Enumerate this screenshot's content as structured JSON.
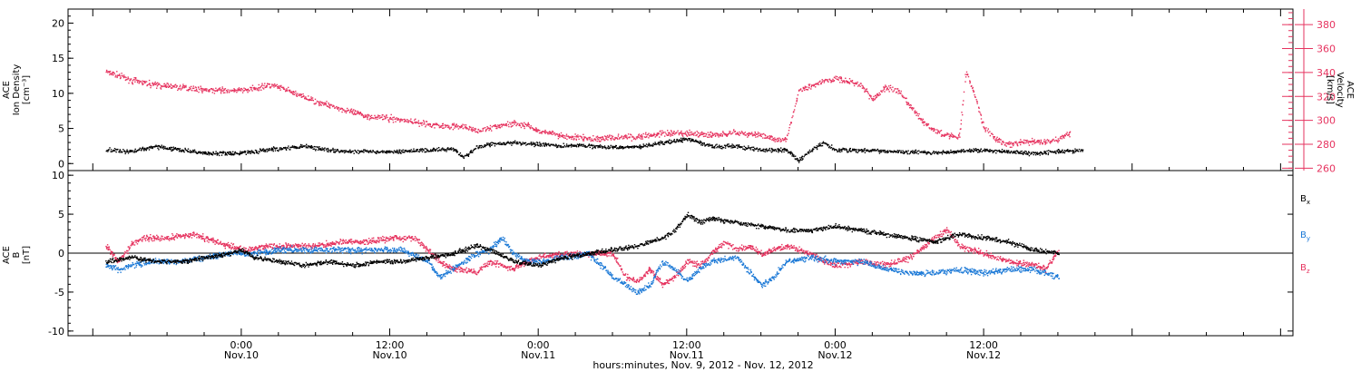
{
  "colors": {
    "black": "#000000",
    "red": "#e6335f",
    "blue": "#1a78d6"
  },
  "chart_data": [
    {
      "type": "scatter",
      "panel": "top",
      "ylabel_lines": [
        "ACE",
        "Ion Density",
        "[cm⁻³]"
      ],
      "ylim": [
        -1,
        22
      ],
      "yticks": [
        "0",
        "5",
        "10",
        "15",
        "20"
      ],
      "y2label_lines": [
        "ACE",
        "Velocity",
        "[km/s]"
      ],
      "y2lim": [
        258,
        393
      ],
      "y2ticks": [
        "260",
        "280",
        "300",
        "320",
        "340",
        "360",
        "380"
      ],
      "series": [
        {
          "name": "Ion Density",
          "color": "black",
          "axis": "left",
          "points": [
            [
              -11,
              2.0
            ],
            [
              -9,
              1.8
            ],
            [
              -7,
              2.5
            ],
            [
              -5,
              2.0
            ],
            [
              -3,
              1.6
            ],
            [
              -1,
              1.5
            ],
            [
              1,
              1.8
            ],
            [
              3,
              2.2
            ],
            [
              5,
              2.6
            ],
            [
              7,
              2.0
            ],
            [
              9,
              1.8
            ],
            [
              11,
              1.7
            ],
            [
              13,
              1.8
            ],
            [
              15,
              2.0
            ],
            [
              17,
              2.2
            ],
            [
              18,
              1.0
            ],
            [
              19,
              2.4
            ],
            [
              20,
              2.8
            ],
            [
              22,
              3.0
            ],
            [
              24,
              2.8
            ],
            [
              26,
              2.6
            ],
            [
              28,
              2.6
            ],
            [
              30,
              2.4
            ],
            [
              32,
              2.4
            ],
            [
              34,
              3.0
            ],
            [
              36,
              3.6
            ],
            [
              38,
              2.5
            ],
            [
              40,
              2.5
            ],
            [
              42,
              2.0
            ],
            [
              44,
              2.0
            ],
            [
              45,
              0.5
            ],
            [
              46,
              2.0
            ],
            [
              47,
              3.0
            ],
            [
              48,
              2.0
            ],
            [
              50,
              2.0
            ],
            [
              52,
              1.8
            ],
            [
              54,
              1.8
            ],
            [
              56,
              1.6
            ],
            [
              58,
              1.8
            ],
            [
              60,
              2.0
            ],
            [
              62,
              1.8
            ],
            [
              64,
              1.5
            ],
            [
              66,
              1.8
            ],
            [
              68,
              2.0
            ]
          ]
        },
        {
          "name": "Velocity",
          "color": "red",
          "axis": "right",
          "points": [
            [
              -11,
              341
            ],
            [
              -10,
              338
            ],
            [
              -9,
              334
            ],
            [
              -7,
              330
            ],
            [
              -5,
              328
            ],
            [
              -3,
              326
            ],
            [
              -1,
              325
            ],
            [
              1,
              327
            ],
            [
              2,
              330
            ],
            [
              3,
              328
            ],
            [
              4,
              324
            ],
            [
              6,
              316
            ],
            [
              8,
              310
            ],
            [
              10,
              304
            ],
            [
              12,
              302
            ],
            [
              14,
              299
            ],
            [
              16,
              296
            ],
            [
              18,
              295
            ],
            [
              19,
              291
            ],
            [
              20,
              294
            ],
            [
              21,
              296
            ],
            [
              22,
              298
            ],
            [
              23,
              296
            ],
            [
              24,
              292
            ],
            [
              26,
              287
            ],
            [
              28,
              285
            ],
            [
              30,
              286
            ],
            [
              32,
              287
            ],
            [
              34,
              289
            ],
            [
              36,
              290
            ],
            [
              38,
              288
            ],
            [
              40,
              290
            ],
            [
              42,
              288
            ],
            [
              43,
              285
            ],
            [
              44,
              284
            ],
            [
              45,
              325
            ],
            [
              46,
              330
            ],
            [
              47,
              333
            ],
            [
              48,
              335
            ],
            [
              49,
              333
            ],
            [
              50,
              330
            ],
            [
              51,
              318
            ],
            [
              52,
              328
            ],
            [
              53,
              325
            ],
            [
              54,
              312
            ],
            [
              55,
              300
            ],
            [
              56,
              291
            ],
            [
              57,
              288
            ],
            [
              58,
              287
            ],
            [
              58.5,
              340
            ],
            [
              59,
              329
            ],
            [
              60,
              294
            ],
            [
              61,
              284
            ],
            [
              62,
              280
            ],
            [
              63,
              282
            ],
            [
              64,
              283
            ],
            [
              65,
              282
            ],
            [
              66,
              285
            ],
            [
              67,
              290
            ]
          ]
        }
      ]
    },
    {
      "type": "scatter",
      "panel": "bottom",
      "ylabel_lines": [
        "ACE",
        "B",
        "[nT]"
      ],
      "ylim": [
        -10.6,
        10.6
      ],
      "yticks": [
        "-10",
        "-5",
        "0",
        "5",
        "10"
      ],
      "xlim": [
        -14,
        85
      ],
      "xticks": [
        {
          "x": 0,
          "label": "0:00",
          "date": "Nov.10"
        },
        {
          "x": 12,
          "label": "12:00",
          "date": "Nov.10"
        },
        {
          "x": 24,
          "label": "0:00",
          "date": "Nov.11"
        },
        {
          "x": 36,
          "label": "12:00",
          "date": "Nov.11"
        },
        {
          "x": 48,
          "label": "0:00",
          "date": "Nov.12"
        },
        {
          "x": 60,
          "label": "12:00",
          "date": "Nov.12"
        }
      ],
      "xlabel": "hours:minutes, Nov. 9, 2012 - Nov. 12, 2012",
      "legend": [
        {
          "text": "B",
          "sub": "x",
          "color": "black"
        },
        {
          "text": "B",
          "sub": "y",
          "color": "blue"
        },
        {
          "text": "B",
          "sub": "z",
          "color": "red"
        }
      ],
      "series": [
        {
          "name": "Bx",
          "color": "black",
          "points": [
            [
              -11,
              -1
            ],
            [
              -9,
              -0.5
            ],
            [
              -7,
              -1
            ],
            [
              -5,
              -1
            ],
            [
              -3,
              -0.5
            ],
            [
              -1,
              0
            ],
            [
              0,
              0.5
            ],
            [
              1,
              -0.5
            ],
            [
              3,
              -1
            ],
            [
              5,
              -1.5
            ],
            [
              7,
              -1
            ],
            [
              9,
              -1.5
            ],
            [
              11,
              -1
            ],
            [
              13,
              -1
            ],
            [
              15,
              -0.5
            ],
            [
              17,
              0
            ],
            [
              18,
              0.5
            ],
            [
              19,
              1
            ],
            [
              20,
              0.5
            ],
            [
              22,
              -1
            ],
            [
              24,
              -1.5
            ],
            [
              26,
              -0.5
            ],
            [
              28,
              0
            ],
            [
              30,
              0.5
            ],
            [
              32,
              1
            ],
            [
              34,
              2
            ],
            [
              35,
              3
            ],
            [
              36,
              5
            ],
            [
              37,
              4
            ],
            [
              38,
              4.5
            ],
            [
              40,
              4
            ],
            [
              42,
              3.5
            ],
            [
              44,
              3
            ],
            [
              46,
              3
            ],
            [
              48,
              3.5
            ],
            [
              50,
              3
            ],
            [
              52,
              2.5
            ],
            [
              54,
              2
            ],
            [
              56,
              1.5
            ],
            [
              58,
              2.5
            ],
            [
              60,
              2
            ],
            [
              62,
              1.5
            ],
            [
              64,
              0.5
            ],
            [
              66,
              0
            ]
          ]
        },
        {
          "name": "By",
          "color": "blue",
          "points": [
            [
              -11,
              -1.5
            ],
            [
              -10,
              -2
            ],
            [
              -9,
              -1.5
            ],
            [
              -7,
              -1
            ],
            [
              -5,
              -1
            ],
            [
              -3,
              -0.5
            ],
            [
              -1,
              0
            ],
            [
              1,
              0
            ],
            [
              3,
              0.5
            ],
            [
              5,
              0.5
            ],
            [
              7,
              0.5
            ],
            [
              9,
              0.5
            ],
            [
              11,
              0.5
            ],
            [
              13,
              0.5
            ],
            [
              15,
              -1
            ],
            [
              16,
              -3
            ],
            [
              17,
              -2
            ],
            [
              18,
              -1
            ],
            [
              19,
              0
            ],
            [
              20,
              0.5
            ],
            [
              21,
              2
            ],
            [
              22,
              0
            ],
            [
              23,
              -1
            ],
            [
              24,
              -1
            ],
            [
              26,
              -0.5
            ],
            [
              28,
              0
            ],
            [
              29,
              -1.5
            ],
            [
              30,
              -3
            ],
            [
              31,
              -4
            ],
            [
              32,
              -5
            ],
            [
              33,
              -4
            ],
            [
              34,
              -1
            ],
            [
              35,
              -2
            ],
            [
              36,
              -3.5
            ],
            [
              37,
              -2
            ],
            [
              38,
              -1
            ],
            [
              40,
              -0.5
            ],
            [
              42,
              -4
            ],
            [
              43,
              -3
            ],
            [
              44,
              -1
            ],
            [
              46,
              -0.5
            ],
            [
              48,
              -1
            ],
            [
              50,
              -1
            ],
            [
              52,
              -2
            ],
            [
              54,
              -2.5
            ],
            [
              56,
              -2.5
            ],
            [
              58,
              -2
            ],
            [
              60,
              -2.5
            ],
            [
              62,
              -2
            ],
            [
              64,
              -2
            ],
            [
              66,
              -3
            ]
          ]
        },
        {
          "name": "Bz",
          "color": "red",
          "points": [
            [
              -11,
              1
            ],
            [
              -10,
              -1
            ],
            [
              -9,
              1
            ],
            [
              -8,
              2
            ],
            [
              -6,
              2
            ],
            [
              -4,
              2.5
            ],
            [
              -2,
              1.5
            ],
            [
              0,
              0.5
            ],
            [
              2,
              1
            ],
            [
              4,
              1
            ],
            [
              6,
              1
            ],
            [
              8,
              1.5
            ],
            [
              10,
              1.5
            ],
            [
              12,
              2
            ],
            [
              14,
              2
            ],
            [
              15,
              0.5
            ],
            [
              16,
              -1
            ],
            [
              17,
              -2
            ],
            [
              18,
              -2
            ],
            [
              19,
              -2.5
            ],
            [
              20,
              -1
            ],
            [
              21,
              -1.5
            ],
            [
              22,
              -2
            ],
            [
              23,
              -1
            ],
            [
              24,
              -0.5
            ],
            [
              26,
              0
            ],
            [
              28,
              0
            ],
            [
              30,
              0
            ],
            [
              31,
              -3
            ],
            [
              32,
              -3.5
            ],
            [
              33,
              -2
            ],
            [
              34,
              -4
            ],
            [
              35,
              -3
            ],
            [
              36,
              -1
            ],
            [
              37,
              -1.5
            ],
            [
              38,
              0
            ],
            [
              39,
              1.5
            ],
            [
              40,
              0.5
            ],
            [
              41,
              1
            ],
            [
              42,
              0
            ],
            [
              44,
              1
            ],
            [
              46,
              0
            ],
            [
              47,
              -1
            ],
            [
              48,
              -1.5
            ],
            [
              50,
              -1
            ],
            [
              52,
              -1.5
            ],
            [
              54,
              -0.5
            ],
            [
              56,
              2
            ],
            [
              57,
              3
            ],
            [
              58,
              1
            ],
            [
              60,
              0
            ],
            [
              62,
              -1
            ],
            [
              64,
              -1.5
            ],
            [
              65,
              -2
            ],
            [
              66,
              0.5
            ]
          ]
        }
      ]
    }
  ]
}
